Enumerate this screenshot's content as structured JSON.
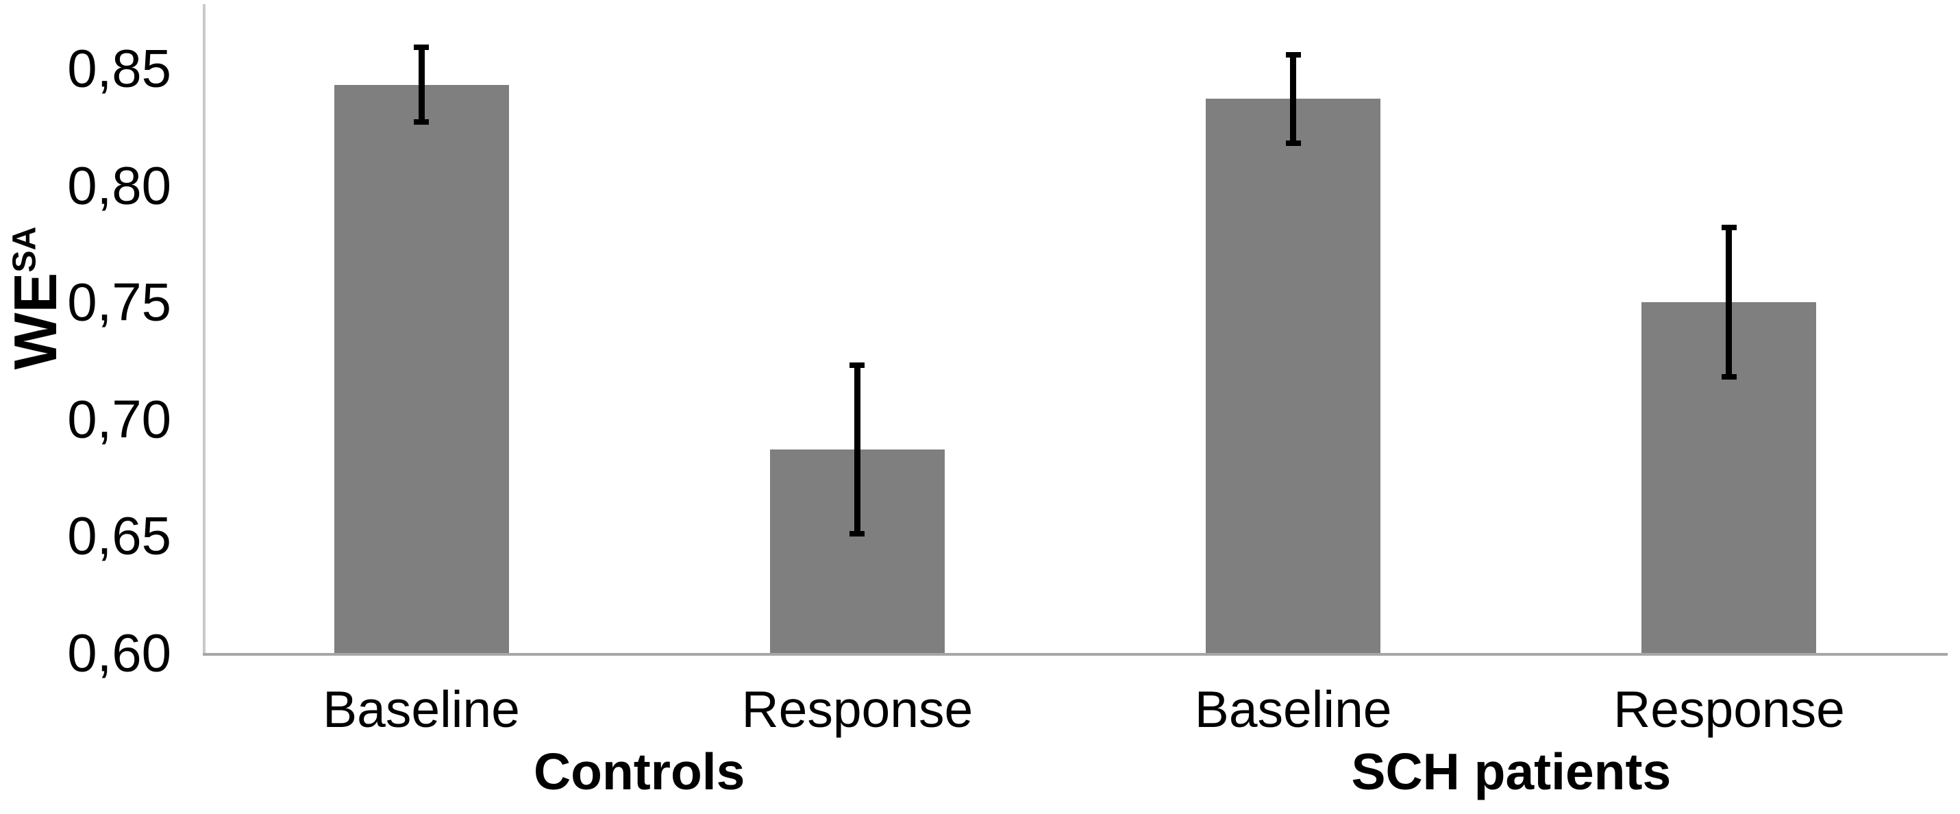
{
  "chart_data": {
    "type": "bar",
    "title": "",
    "ylabel_base": "WE",
    "ylabel_superscript": "SA",
    "xlabel": "",
    "ymin": 0.6,
    "ymax": 0.877,
    "decimal_separator": ",",
    "grid": false,
    "legend": false,
    "bar_color": "#7f7f7f",
    "error_bar_color": "#000000",
    "axis_line_color_vertical": "#c9c9c9",
    "axis_line_color_horizontal": "#a6a6a6",
    "y_ticks": [
      {
        "label": "0,85",
        "value": 0.85
      },
      {
        "label": "0,80",
        "value": 0.8
      },
      {
        "label": "0,75",
        "value": 0.75
      },
      {
        "label": "0,70",
        "value": 0.7
      },
      {
        "label": "0,65",
        "value": 0.65
      },
      {
        "label": "0,60",
        "value": 0.6
      }
    ],
    "groups": [
      {
        "label": "Controls",
        "bars": [
          {
            "label": "Baseline",
            "value": 0.843,
            "error": 0.016
          },
          {
            "label": "Response",
            "value": 0.687,
            "error": 0.036
          }
        ]
      },
      {
        "label": "SCH patients",
        "bars": [
          {
            "label": "Baseline",
            "value": 0.837,
            "error": 0.019
          },
          {
            "label": "Response",
            "value": 0.75,
            "error": 0.032
          }
        ]
      }
    ]
  }
}
